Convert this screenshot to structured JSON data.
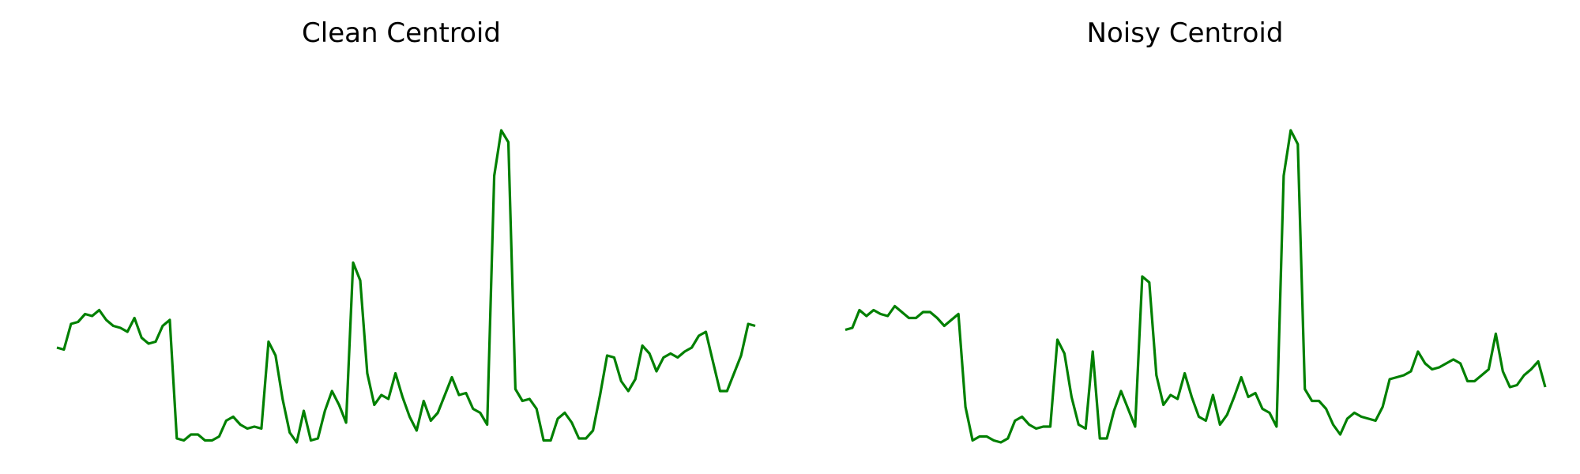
{
  "chart_data": [
    {
      "type": "line",
      "title": "Clean Centroid",
      "xlabel": "",
      "ylabel": "",
      "grid": false,
      "axes_visible": false,
      "ylim": [
        -0.56,
        1.52
      ],
      "series": [
        {
          "color": "#008000",
          "values": [
            0.0,
            -0.01,
            0.12,
            0.13,
            0.17,
            0.16,
            0.19,
            0.14,
            0.11,
            0.1,
            0.08,
            0.15,
            0.05,
            0.02,
            0.03,
            0.11,
            0.14,
            -0.46,
            -0.47,
            -0.44,
            -0.44,
            -0.47,
            -0.47,
            -0.45,
            -0.37,
            -0.35,
            -0.39,
            -0.41,
            -0.4,
            -0.41,
            0.03,
            -0.04,
            -0.26,
            -0.43,
            -0.48,
            -0.32,
            -0.47,
            -0.46,
            -0.32,
            -0.22,
            -0.29,
            -0.38,
            0.43,
            0.34,
            -0.13,
            -0.29,
            -0.24,
            -0.26,
            -0.13,
            -0.25,
            -0.35,
            -0.42,
            -0.27,
            -0.37,
            -0.33,
            -0.24,
            -0.15,
            -0.24,
            -0.23,
            -0.31,
            -0.33,
            -0.39,
            0.87,
            1.1,
            1.04,
            -0.21,
            -0.27,
            -0.26,
            -0.31,
            -0.47,
            -0.47,
            -0.36,
            -0.33,
            -0.38,
            -0.46,
            -0.46,
            -0.42,
            -0.24,
            -0.04,
            -0.05,
            -0.17,
            -0.22,
            -0.16,
            0.01,
            -0.03,
            -0.12,
            -0.05,
            -0.03,
            -0.05,
            -0.02,
            0.0,
            0.06,
            0.08,
            -0.07,
            -0.22,
            -0.22,
            -0.13,
            -0.04,
            0.12,
            0.11
          ]
        }
      ]
    },
    {
      "type": "line",
      "title": "Noisy Centroid",
      "xlabel": "",
      "ylabel": "",
      "grid": false,
      "axes_visible": false,
      "ylim": [
        -0.56,
        1.52
      ],
      "series": [
        {
          "color": "#008000",
          "values": [
            0.09,
            0.1,
            0.19,
            0.16,
            0.19,
            0.17,
            0.16,
            0.21,
            0.18,
            0.15,
            0.15,
            0.18,
            0.18,
            0.15,
            0.11,
            0.14,
            0.17,
            -0.3,
            -0.47,
            -0.45,
            -0.45,
            -0.47,
            -0.48,
            -0.46,
            -0.37,
            -0.35,
            -0.39,
            -0.41,
            -0.4,
            -0.4,
            0.04,
            -0.03,
            -0.25,
            -0.39,
            -0.41,
            -0.02,
            -0.46,
            -0.46,
            -0.32,
            -0.22,
            -0.31,
            -0.4,
            0.36,
            0.33,
            -0.14,
            -0.29,
            -0.24,
            -0.26,
            -0.13,
            -0.25,
            -0.35,
            -0.37,
            -0.24,
            -0.39,
            -0.34,
            -0.25,
            -0.15,
            -0.25,
            -0.23,
            -0.31,
            -0.33,
            -0.4,
            0.87,
            1.1,
            1.03,
            -0.21,
            -0.27,
            -0.27,
            -0.31,
            -0.39,
            -0.44,
            -0.36,
            -0.33,
            -0.35,
            -0.36,
            -0.37,
            -0.3,
            -0.16,
            -0.15,
            -0.14,
            -0.12,
            -0.02,
            -0.08,
            -0.11,
            -0.1,
            -0.08,
            -0.06,
            -0.08,
            -0.17,
            -0.17,
            -0.14,
            -0.11,
            0.07,
            -0.12,
            -0.2,
            -0.19,
            -0.14,
            -0.11,
            -0.07,
            -0.2
          ]
        }
      ]
    }
  ]
}
